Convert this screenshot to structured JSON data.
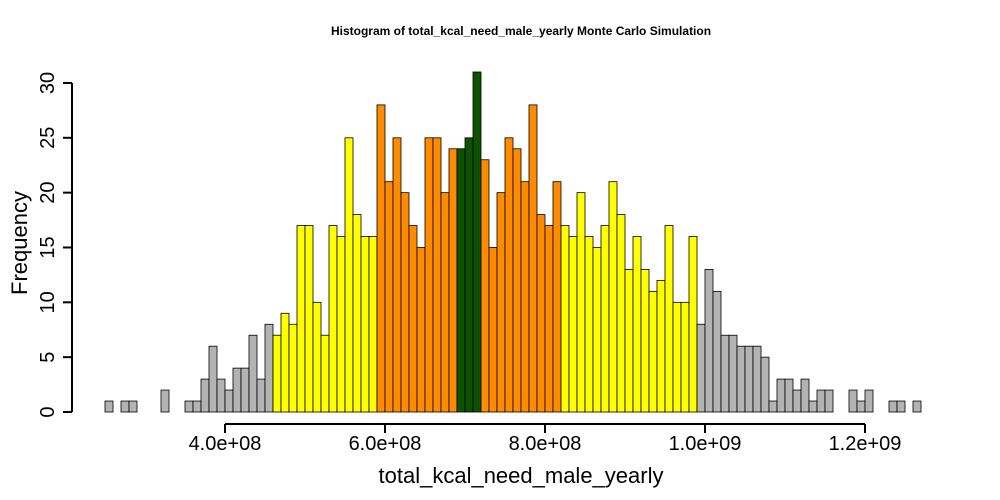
{
  "chart_data": {
    "type": "bar",
    "title": "Histogram of  total_kcal_need_male_yearly  Monte Carlo Simulation",
    "xlabel": "total_kcal_need_male_yearly",
    "ylabel": "Frequency",
    "xlim": [
      250000000,
      1290000000
    ],
    "ylim": [
      0,
      31
    ],
    "bin_width": 10000000,
    "first_bin_start": 250000000,
    "x_ticks": [
      {
        "value": 400000000,
        "label": "4.0e+08"
      },
      {
        "value": 600000000,
        "label": "6.0e+08"
      },
      {
        "value": 800000000,
        "label": "8.0e+08"
      },
      {
        "value": 1000000000,
        "label": "1.0e+09"
      },
      {
        "value": 1200000000,
        "label": "1.2e+09"
      }
    ],
    "y_ticks": [
      0,
      5,
      10,
      15,
      20,
      25,
      30
    ],
    "grid": false,
    "colors": {
      "tail": "#b3b3b3",
      "outer": "#ffff00",
      "inner": "#ff8c00",
      "center": "#0d5200",
      "stroke": "#000000"
    },
    "counts": [
      1,
      0,
      1,
      1,
      0,
      0,
      0,
      2,
      0,
      0,
      1,
      1,
      3,
      6,
      3,
      2,
      4,
      4,
      7,
      3,
      8,
      7,
      9,
      8,
      17,
      17,
      10,
      7,
      17,
      16,
      25,
      18,
      16,
      16,
      28,
      21,
      25,
      20,
      17,
      15,
      25,
      25,
      20,
      24,
      24,
      25,
      31,
      23,
      15,
      20,
      25,
      24,
      21,
      28,
      18,
      17,
      21,
      17,
      16,
      20,
      16,
      15,
      17,
      21,
      18,
      13,
      16,
      13,
      11,
      12,
      17,
      10,
      10,
      16,
      8,
      13,
      11,
      7,
      7,
      6,
      6,
      6,
      5,
      1,
      3,
      3,
      2,
      3,
      1,
      2,
      2,
      0,
      0,
      2,
      1,
      2,
      0,
      0,
      1,
      1,
      0,
      1,
      0,
      0,
      0,
      0,
      0,
      0,
      0,
      0,
      0,
      0,
      0,
      0,
      0,
      0,
      1
    ],
    "color_bands": [
      {
        "from": 250000000,
        "to": 460000000,
        "band": "tail"
      },
      {
        "from": 460000000,
        "to": 590000000,
        "band": "outer"
      },
      {
        "from": 590000000,
        "to": 690000000,
        "band": "inner"
      },
      {
        "from": 690000000,
        "to": 720000000,
        "band": "center"
      },
      {
        "from": 720000000,
        "to": 820000000,
        "band": "inner"
      },
      {
        "from": 820000000,
        "to": 990000000,
        "band": "outer"
      },
      {
        "from": 990000000,
        "to": 1290000000,
        "band": "tail"
      }
    ]
  }
}
